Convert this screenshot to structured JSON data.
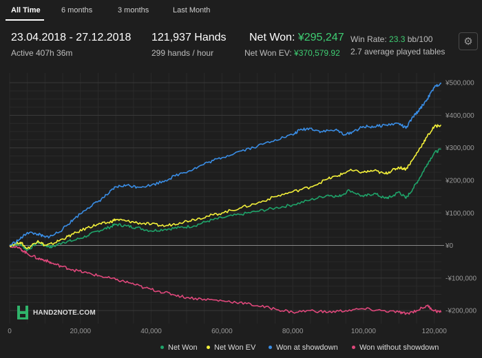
{
  "tabs": [
    {
      "label": "All Time",
      "active": true
    },
    {
      "label": "6 months",
      "active": false
    },
    {
      "label": "3 months",
      "active": false
    },
    {
      "label": "Last Month",
      "active": false
    }
  ],
  "summary": {
    "date_range": "23.04.2018 - 27.12.2018",
    "active_time": "Active 407h 36m",
    "hands": "121,937 Hands",
    "hands_per_hour": "299 hands / hour",
    "net_won_label": "Net Won:",
    "net_won_value": "¥295,247",
    "net_won_ev_label": "Net Won  EV:",
    "net_won_ev_value": "¥370,579.92",
    "win_rate_label": "Win Rate:",
    "win_rate_value": "23.3",
    "win_rate_unit": "bb/100",
    "avg_tables": "2.7 average played tables"
  },
  "icons": {
    "settings": "gear-icon",
    "logo": "hand2note-logo"
  },
  "logo_text": "HAND2NOTE.COM",
  "colors": {
    "background": "#1e1e1e",
    "net_won": "#1fa46a",
    "net_won_ev": "#f4f13a",
    "won_at_showdown": "#3a8ee6",
    "won_without_showdown": "#e0487c",
    "accent_green": "#3fce73"
  },
  "chart_data": {
    "type": "line",
    "xlabel": "",
    "ylabel": "",
    "xlim": [
      0,
      122000
    ],
    "ylim": [
      -240000,
      530000
    ],
    "x_ticks": [
      0,
      20000,
      40000,
      60000,
      80000,
      100000,
      120000
    ],
    "x_tick_labels": [
      "0",
      "20,000",
      "40,000",
      "60,000",
      "80,000",
      "100,000",
      "120,000"
    ],
    "y_ticks": [
      500000,
      400000,
      300000,
      200000,
      100000,
      0,
      -100000,
      -200000
    ],
    "y_tick_labels": [
      "¥500,000",
      "¥400,000",
      "¥300,000",
      "¥200,000",
      "¥100,000",
      "¥0",
      "-¥100,000",
      "-¥200,000"
    ],
    "grid": true,
    "legend_position": "bottom",
    "series": [
      {
        "name": "Net Won",
        "color": "#1fa46a",
        "x": [
          0,
          3000,
          5000,
          8000,
          10000,
          12000,
          15000,
          18000,
          22000,
          25000,
          28000,
          30000,
          33000,
          36000,
          40000,
          44000,
          48000,
          52000,
          56000,
          60000,
          65000,
          70000,
          75000,
          80000,
          85000,
          90000,
          93000,
          96000,
          100000,
          103000,
          106000,
          108000,
          110000,
          112000,
          114000,
          116000,
          118000,
          120000,
          121900
        ],
        "y": [
          0,
          5000,
          -15000,
          10000,
          0,
          -5000,
          10000,
          15000,
          30000,
          45000,
          55000,
          65000,
          60000,
          55000,
          45000,
          50000,
          55000,
          60000,
          75000,
          85000,
          95000,
          105000,
          115000,
          125000,
          140000,
          155000,
          150000,
          170000,
          150000,
          160000,
          145000,
          150000,
          165000,
          145000,
          175000,
          210000,
          250000,
          285000,
          295247
        ]
      },
      {
        "name": "Net Won  EV",
        "color": "#f4f13a",
        "x": [
          0,
          3000,
          5000,
          8000,
          10000,
          12000,
          15000,
          18000,
          22000,
          25000,
          28000,
          30000,
          33000,
          36000,
          40000,
          44000,
          48000,
          52000,
          56000,
          60000,
          65000,
          70000,
          75000,
          80000,
          85000,
          90000,
          93000,
          96000,
          100000,
          103000,
          106000,
          108000,
          110000,
          112000,
          114000,
          116000,
          118000,
          120000,
          121900
        ],
        "y": [
          0,
          10000,
          -10000,
          15000,
          0,
          5000,
          20000,
          35000,
          55000,
          65000,
          70000,
          80000,
          75000,
          70000,
          65000,
          60000,
          70000,
          80000,
          90000,
          100000,
          115000,
          130000,
          150000,
          165000,
          180000,
          205000,
          215000,
          230000,
          225000,
          230000,
          220000,
          230000,
          240000,
          235000,
          265000,
          300000,
          335000,
          365000,
          370580
        ]
      },
      {
        "name": "Won at showdown",
        "color": "#3a8ee6",
        "x": [
          0,
          3000,
          5000,
          8000,
          10000,
          12000,
          15000,
          18000,
          22000,
          25000,
          28000,
          30000,
          33000,
          36000,
          40000,
          44000,
          48000,
          52000,
          56000,
          60000,
          65000,
          70000,
          75000,
          80000,
          82000,
          85000,
          88000,
          92000,
          95000,
          98000,
          100000,
          103000,
          106000,
          110000,
          112000,
          114000,
          116000,
          118000,
          120000,
          121900
        ],
        "y": [
          0,
          20000,
          40000,
          35000,
          25000,
          30000,
          50000,
          80000,
          115000,
          135000,
          160000,
          180000,
          185000,
          180000,
          185000,
          200000,
          220000,
          235000,
          255000,
          270000,
          290000,
          305000,
          325000,
          340000,
          355000,
          360000,
          350000,
          355000,
          340000,
          355000,
          365000,
          365000,
          370000,
          375000,
          360000,
          395000,
          420000,
          450000,
          485000,
          500000
        ]
      },
      {
        "name": "Won without showdown",
        "color": "#e0487c",
        "x": [
          0,
          3000,
          5000,
          8000,
          10000,
          12000,
          15000,
          18000,
          22000,
          26000,
          30000,
          34000,
          38000,
          42000,
          46000,
          50000,
          55000,
          60000,
          65000,
          70000,
          75000,
          80000,
          85000,
          90000,
          95000,
          100000,
          105000,
          110000,
          112000,
          115000,
          118000,
          120000,
          121900
        ],
        "y": [
          0,
          -10000,
          -25000,
          -40000,
          -45000,
          -55000,
          -65000,
          -75000,
          -85000,
          -95000,
          -105000,
          -115000,
          -130000,
          -140000,
          -150000,
          -160000,
          -165000,
          -170000,
          -175000,
          -185000,
          -195000,
          -205000,
          -200000,
          -205000,
          -200000,
          -195000,
          -200000,
          -205000,
          -210000,
          -200000,
          -185000,
          -200000,
          -205000
        ]
      }
    ]
  }
}
